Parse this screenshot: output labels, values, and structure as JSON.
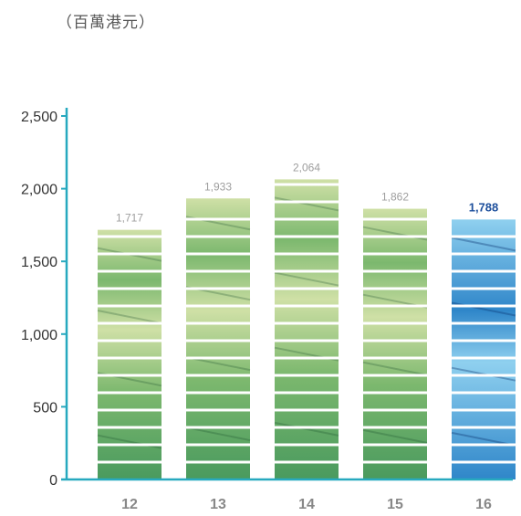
{
  "unit_label": "（百萬港元）",
  "colors": {
    "axis": "#27a9bf",
    "value_label": "#9e9e9e",
    "highlight_label": "#1d4f9c",
    "tick_text": "#333333",
    "category_text": "#888888",
    "separator": "#ffffff",
    "green_dark": "#4a9a5e",
    "green_mid": "#7cb86e",
    "green_light": "#cfe0a6",
    "blue_dark": "#2f86c9",
    "blue_light": "#8fd0ef"
  },
  "chart_data": {
    "type": "bar",
    "title": "",
    "xlabel": "",
    "ylabel": "（百萬港元）",
    "categories": [
      "12",
      "13",
      "14",
      "15",
      "16"
    ],
    "values": [
      1717,
      1933,
      2064,
      1862,
      1788
    ],
    "value_labels": [
      "1,717",
      "1,933",
      "2,064",
      "1,862",
      "1,788"
    ],
    "highlight_index": 4,
    "ylim": [
      0,
      2500
    ],
    "yticks": [
      0,
      500,
      1000,
      1500,
      2000,
      2500
    ],
    "ytick_labels": [
      "0",
      "500",
      "1,000",
      "1,500",
      "2,000",
      "2,500"
    ],
    "grid": false,
    "legend": "none"
  }
}
